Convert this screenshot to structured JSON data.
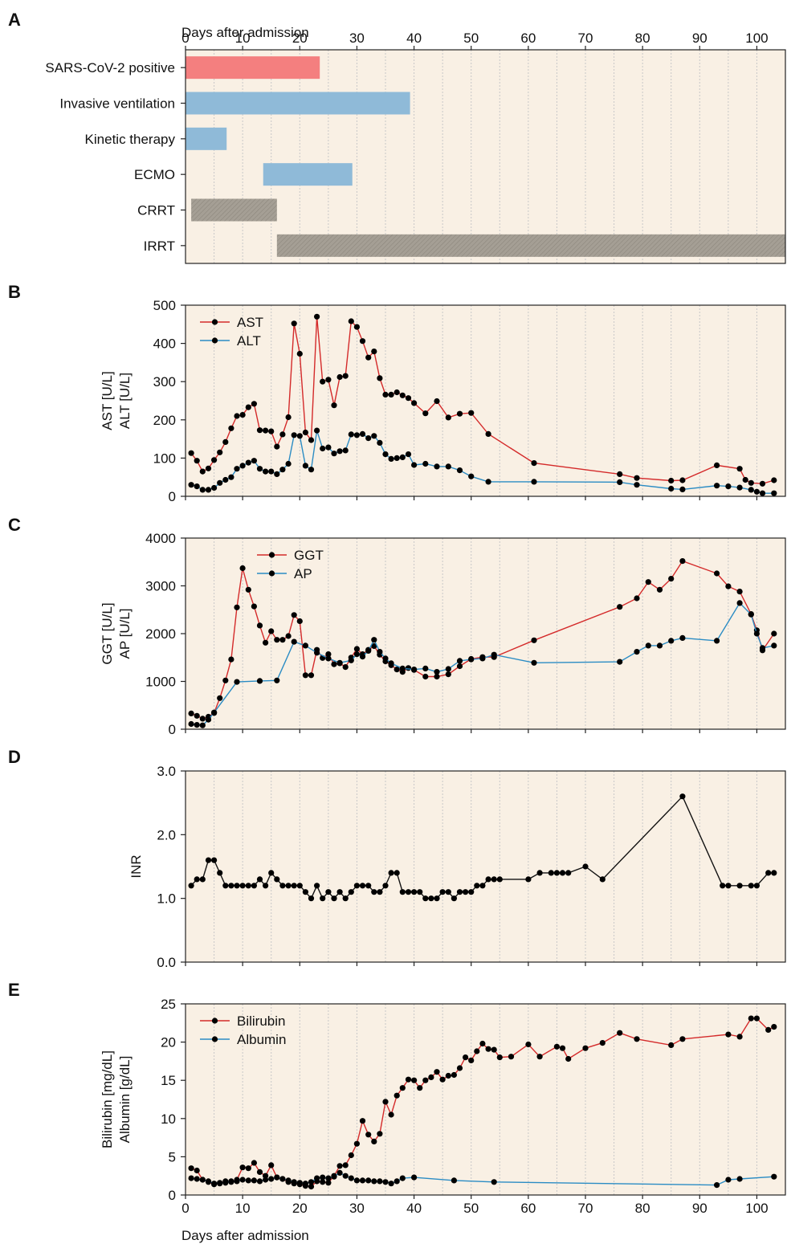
{
  "figure": {
    "x_axis_title": "Days after admission",
    "x_ticks": [
      0,
      10,
      20,
      30,
      40,
      50,
      60,
      70,
      80,
      90,
      100
    ],
    "xlim": [
      0,
      105
    ],
    "background_color": "#f9f0e4",
    "grid_color": "#c8c8c8"
  },
  "chart_data": [
    {
      "panel": "A",
      "type": "timeline",
      "xlabel": "Days after admission",
      "xlim": [
        0,
        105
      ],
      "rows": [
        {
          "label": "SARS-CoV-2 positive",
          "start": 0,
          "end": 23.5,
          "color": "#f47f7f",
          "pattern": "solid"
        },
        {
          "label": "Invasive ventilation",
          "start": 0,
          "end": 39.3,
          "color": "#8fbad8",
          "pattern": "solid"
        },
        {
          "label": "Kinetic therapy",
          "start": 0,
          "end": 7.2,
          "color": "#8fbad8",
          "pattern": "solid"
        },
        {
          "label": "ECMO",
          "start": 13.6,
          "end": 29.2,
          "color": "#8fbad8",
          "pattern": "solid"
        },
        {
          "label": "CRRT",
          "start": 1,
          "end": 16,
          "color": "#a59f95",
          "pattern": "hatched"
        },
        {
          "label": "IRRT",
          "start": 16,
          "end": 105,
          "color": "#a59f95",
          "pattern": "hatched"
        }
      ]
    },
    {
      "panel": "B",
      "type": "line",
      "ylabel": [
        "AST [U/L]",
        "ALT [U/L]"
      ],
      "ylim": [
        0,
        500
      ],
      "yticks": [
        0,
        100,
        200,
        300,
        400,
        500
      ],
      "yticks_labels": [
        "0",
        "100",
        "200",
        "300",
        "400",
        "500"
      ],
      "legend": "top-left",
      "series": [
        {
          "name": "AST",
          "color": "#d42a2a",
          "x": [
            1,
            2,
            3,
            4,
            5,
            6,
            7,
            8,
            9,
            10,
            11,
            12,
            13,
            14,
            15,
            16,
            17,
            18,
            19,
            20,
            21,
            22,
            23,
            24,
            25,
            26,
            27,
            28,
            29,
            30,
            31,
            32,
            33,
            34,
            35,
            36,
            37,
            38,
            39,
            40,
            42,
            44,
            46,
            48,
            50,
            53,
            61,
            76,
            79,
            85,
            87,
            93,
            97,
            98,
            99,
            101,
            103
          ],
          "y": [
            113,
            93,
            65,
            73,
            95,
            115,
            142,
            178,
            210,
            213,
            233,
            242,
            173,
            172,
            170,
            130,
            162,
            207,
            452,
            373,
            167,
            147,
            470,
            300,
            305,
            238,
            312,
            315,
            458,
            443,
            406,
            363,
            379,
            309,
            266,
            266,
            272,
            264,
            257,
            244,
            217,
            249,
            206,
            216,
            218,
            163,
            87,
            58,
            48,
            41,
            42,
            81,
            72,
            43,
            35,
            33,
            42
          ]
        },
        {
          "name": "ALT",
          "color": "#2b8cc4",
          "x": [
            1,
            2,
            3,
            4,
            5,
            6,
            7,
            8,
            9,
            10,
            11,
            12,
            13,
            14,
            15,
            16,
            17,
            18,
            19,
            20,
            21,
            22,
            23,
            24,
            25,
            26,
            27,
            28,
            29,
            30,
            31,
            32,
            33,
            34,
            35,
            36,
            37,
            38,
            39,
            40,
            42,
            44,
            46,
            48,
            50,
            53,
            61,
            76,
            79,
            85,
            87,
            93,
            95,
            97,
            99,
            100,
            101,
            103
          ],
          "y": [
            30,
            26,
            17,
            17,
            22,
            35,
            43,
            50,
            72,
            80,
            88,
            93,
            72,
            65,
            65,
            58,
            70,
            85,
            160,
            158,
            80,
            70,
            172,
            125,
            128,
            112,
            118,
            120,
            162,
            160,
            163,
            152,
            158,
            140,
            110,
            98,
            100,
            102,
            110,
            82,
            85,
            78,
            78,
            68,
            52,
            38,
            38,
            37,
            30,
            20,
            18,
            28,
            26,
            23,
            17,
            12,
            8,
            8
          ]
        }
      ]
    },
    {
      "panel": "C",
      "type": "line",
      "ylabel": [
        "GGT [U/L]",
        "AP [U/L]"
      ],
      "ylim": [
        0,
        4000
      ],
      "yticks": [
        0,
        1000,
        2000,
        3000,
        4000
      ],
      "yticks_labels": [
        "0",
        "1000",
        "2000",
        "3000",
        "4000"
      ],
      "legend": "top-left",
      "series": [
        {
          "name": "GGT",
          "color": "#d42a2a",
          "x": [
            1,
            2,
            3,
            4,
            5,
            6,
            7,
            8,
            9,
            10,
            11,
            12,
            13,
            14,
            15,
            16,
            17,
            18,
            19,
            20,
            21,
            22,
            23,
            24,
            25,
            26,
            27,
            28,
            29,
            30,
            31,
            32,
            33,
            34,
            35,
            36,
            37,
            38,
            39,
            40,
            42,
            44,
            46,
            48,
            50,
            52,
            54,
            61,
            76,
            79,
            81,
            83,
            85,
            87,
            93,
            95,
            97,
            99,
            100,
            101,
            103
          ],
          "y": [
            330,
            280,
            220,
            260,
            340,
            650,
            1020,
            1460,
            2550,
            3370,
            2920,
            2570,
            2170,
            1810,
            2050,
            1870,
            1870,
            1950,
            2390,
            2260,
            1130,
            1130,
            1660,
            1490,
            1570,
            1360,
            1380,
            1300,
            1500,
            1680,
            1570,
            1660,
            1740,
            1560,
            1420,
            1340,
            1250,
            1200,
            1280,
            1240,
            1100,
            1100,
            1150,
            1320,
            1470,
            1510,
            1510,
            1860,
            2560,
            2740,
            3080,
            2920,
            3150,
            3520,
            3260,
            2990,
            2880,
            2410,
            2070,
            1650,
            2000
          ]
        },
        {
          "name": "AP",
          "color": "#2b8cc4",
          "x": [
            1,
            2,
            3,
            4,
            5,
            9,
            13,
            16,
            19,
            21,
            23,
            25,
            27,
            29,
            30,
            31,
            32,
            33,
            34,
            35,
            36,
            38,
            40,
            42,
            44,
            46,
            48,
            50,
            52,
            54,
            61,
            76,
            79,
            81,
            83,
            85,
            87,
            93,
            97,
            99,
            100,
            101,
            103
          ],
          "y": [
            110,
            90,
            80,
            200,
            350,
            990,
            1010,
            1020,
            1830,
            1750,
            1600,
            1480,
            1390,
            1440,
            1570,
            1520,
            1640,
            1870,
            1620,
            1480,
            1380,
            1270,
            1250,
            1270,
            1200,
            1260,
            1430,
            1460,
            1480,
            1560,
            1390,
            1410,
            1620,
            1750,
            1750,
            1850,
            1910,
            1850,
            2640,
            2400,
            2000,
            1700,
            1750
          ]
        }
      ]
    },
    {
      "panel": "D",
      "type": "line",
      "ylabel": [
        "INR"
      ],
      "ylim": [
        0,
        3
      ],
      "yticks": [
        0,
        1,
        2,
        3
      ],
      "yticks_labels": [
        "0.0",
        "1.0",
        "2.0",
        "3.0"
      ],
      "series": [
        {
          "name": "",
          "color": "#111111",
          "x": [
            1,
            2,
            3,
            4,
            5,
            6,
            7,
            8,
            9,
            10,
            11,
            12,
            13,
            14,
            15,
            16,
            17,
            18,
            19,
            20,
            21,
            22,
            23,
            24,
            25,
            26,
            27,
            28,
            29,
            30,
            31,
            32,
            33,
            34,
            35,
            36,
            37,
            38,
            39,
            40,
            41,
            42,
            43,
            44,
            45,
            46,
            47,
            48,
            49,
            50,
            51,
            52,
            53,
            54,
            55,
            60,
            62,
            64,
            65,
            66,
            67,
            70,
            73,
            87,
            94,
            95,
            97,
            99,
            100,
            102,
            103
          ],
          "y": [
            1.2,
            1.3,
            1.3,
            1.6,
            1.6,
            1.4,
            1.2,
            1.2,
            1.2,
            1.2,
            1.2,
            1.2,
            1.3,
            1.2,
            1.4,
            1.3,
            1.2,
            1.2,
            1.2,
            1.2,
            1.1,
            1.0,
            1.2,
            1.0,
            1.1,
            1.0,
            1.1,
            1.0,
            1.1,
            1.2,
            1.2,
            1.2,
            1.1,
            1.1,
            1.2,
            1.4,
            1.4,
            1.1,
            1.1,
            1.1,
            1.1,
            1.0,
            1.0,
            1.0,
            1.1,
            1.1,
            1.0,
            1.1,
            1.1,
            1.1,
            1.2,
            1.2,
            1.3,
            1.3,
            1.3,
            1.3,
            1.4,
            1.4,
            1.4,
            1.4,
            1.4,
            1.5,
            1.3,
            2.6,
            1.2,
            1.2,
            1.2,
            1.2,
            1.2,
            1.4,
            1.4
          ]
        }
      ]
    },
    {
      "panel": "E",
      "type": "line",
      "xlabel": "Days after admission",
      "ylabel": [
        "Bilirubin [mg/dL]",
        "Albumin [g/dL]"
      ],
      "ylim": [
        0,
        25
      ],
      "yticks": [
        0,
        5,
        10,
        15,
        20,
        25
      ],
      "yticks_labels": [
        "0",
        "5",
        "10",
        "15",
        "20",
        "25"
      ],
      "legend": "top-left",
      "series": [
        {
          "name": "Bilirubin",
          "color": "#d42a2a",
          "x": [
            1,
            2,
            3,
            4,
            5,
            6,
            7,
            8,
            9,
            10,
            11,
            12,
            13,
            14,
            15,
            16,
            17,
            18,
            19,
            20,
            21,
            22,
            23,
            24,
            25,
            26,
            27,
            28,
            29,
            30,
            31,
            32,
            33,
            34,
            35,
            36,
            37,
            38,
            39,
            40,
            41,
            42,
            43,
            44,
            45,
            46,
            47,
            48,
            49,
            50,
            51,
            52,
            53,
            54,
            55,
            57,
            60,
            62,
            65,
            66,
            67,
            70,
            73,
            76,
            79,
            85,
            87,
            95,
            97,
            99,
            100,
            102,
            103
          ],
          "y": [
            3.5,
            3.2,
            2.0,
            1.7,
            1.4,
            1.5,
            1.8,
            1.7,
            2.0,
            3.6,
            3.5,
            4.2,
            3.0,
            2.5,
            3.9,
            2.3,
            2.1,
            1.7,
            1.5,
            1.4,
            1.2,
            1.1,
            1.8,
            1.7,
            1.6,
            2.5,
            3.8,
            3.9,
            5.2,
            6.7,
            9.7,
            7.9,
            7.0,
            8.0,
            12.2,
            10.5,
            13.0,
            14.0,
            15.1,
            15.0,
            14.0,
            15.0,
            15.4,
            16.1,
            15.1,
            15.6,
            15.7,
            16.6,
            18.0,
            17.6,
            18.8,
            19.8,
            19.1,
            19.0,
            18.0,
            18.1,
            19.7,
            18.1,
            19.4,
            19.2,
            17.8,
            19.2,
            19.9,
            21.2,
            20.4,
            19.6,
            20.4,
            21.0,
            20.7,
            23.1,
            23.1,
            21.6,
            22.0
          ]
        },
        {
          "name": "Albumin",
          "color": "#2b8cc4",
          "x": [
            1,
            2,
            3,
            4,
            5,
            6,
            7,
            8,
            9,
            10,
            11,
            12,
            13,
            14,
            15,
            16,
            17,
            18,
            19,
            20,
            21,
            22,
            23,
            24,
            25,
            26,
            27,
            28,
            29,
            30,
            31,
            32,
            33,
            34,
            35,
            36,
            37,
            38,
            40,
            47,
            54,
            93,
            95,
            97,
            103
          ],
          "y": [
            2.2,
            2.1,
            2.0,
            1.8,
            1.5,
            1.6,
            1.6,
            1.8,
            1.8,
            2.0,
            1.9,
            1.9,
            1.8,
            2.0,
            2.1,
            2.3,
            2.1,
            1.9,
            1.7,
            1.6,
            1.5,
            1.7,
            2.2,
            2.3,
            2.2,
            2.4,
            2.9,
            2.5,
            2.2,
            1.9,
            1.9,
            1.9,
            1.8,
            1.8,
            1.7,
            1.5,
            1.8,
            2.2,
            2.3,
            1.9,
            1.7,
            1.3,
            2.0,
            2.1,
            2.4
          ]
        }
      ]
    }
  ],
  "panels": {
    "a": {
      "letter": "A"
    },
    "b": {
      "letter": "B"
    },
    "c": {
      "letter": "C"
    },
    "d": {
      "letter": "D"
    },
    "e": {
      "letter": "E"
    }
  }
}
